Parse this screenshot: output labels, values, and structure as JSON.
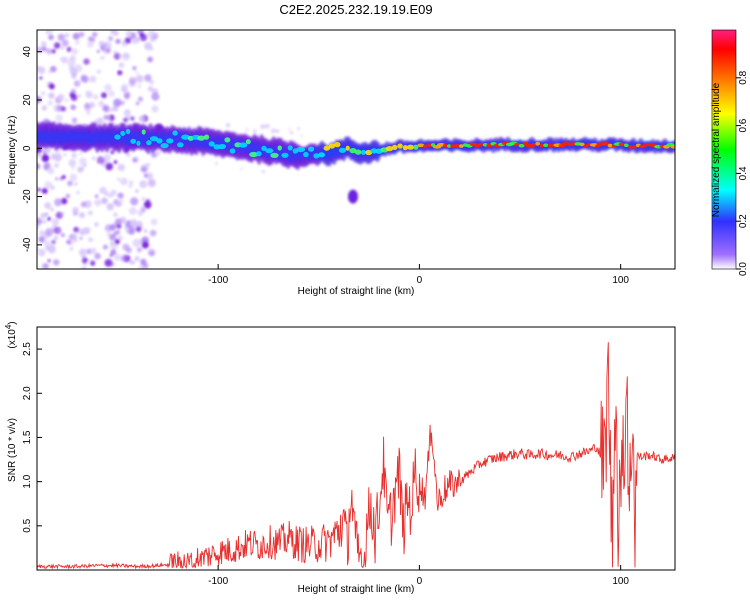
{
  "title": "C2E2.2025.232.19.19.E09",
  "chart_data": [
    {
      "type": "heatmap",
      "name": "spectrogram",
      "xlabel": "Height of straight line (km)",
      "ylabel": "Frequency (Hz)",
      "xlim": [
        -190,
        127
      ],
      "ylim": [
        -50,
        49
      ],
      "xticks": [
        -100,
        0,
        100
      ],
      "xtick_labels": [
        "-100",
        "0",
        "100"
      ],
      "yticks": [
        -40,
        -20,
        0,
        20,
        40
      ],
      "ytick_labels": [
        "-40",
        "-20",
        "0",
        "20",
        "40"
      ],
      "colorbar": {
        "label": "Normalized spectral amplitude",
        "range": [
          0.0,
          1.0
        ],
        "ticks": [
          0.0,
          0.2,
          0.4,
          0.6,
          0.8
        ],
        "tick_labels": [
          "0.0",
          "0.2",
          "0.4",
          "0.6",
          "0.8"
        ],
        "colors": [
          "#ffffff",
          "#8a2be2",
          "#0000ff",
          "#00ffff",
          "#00ff00",
          "#ffff00",
          "#ff8000",
          "#ff0000",
          "#ff0080"
        ]
      },
      "ridge": {
        "x": [
          -190,
          -160,
          -130,
          -110,
          -90,
          -75,
          -60,
          -50,
          -45,
          -40,
          -35,
          -30,
          -25,
          -20,
          -15,
          -10,
          0,
          20,
          40,
          60,
          80,
          95,
          105,
          127
        ],
        "freq_center": [
          5,
          4.5,
          4,
          3,
          1,
          -1,
          -3,
          -2,
          -2.5,
          -1,
          0,
          -2,
          -1.5,
          -1,
          0,
          0.5,
          1,
          1,
          1.5,
          1.5,
          1.5,
          1.5,
          1,
          1
        ]
      },
      "isolated_blob": {
        "x": -33,
        "freq": -20
      },
      "noise_region_x": [
        -190,
        -127
      ]
    },
    {
      "type": "line",
      "name": "snr",
      "xlabel": "Height of straight line (km)",
      "ylabel": "SNR (10 * v/v)",
      "scale_label_main": "(x10",
      "scale_label_exp": "4",
      "scale_label_end": ")",
      "xlim": [
        -190,
        127
      ],
      "ylim": [
        0,
        2.75
      ],
      "xticks": [
        -100,
        0,
        100
      ],
      "xtick_labels": [
        "-100",
        "0",
        "100"
      ],
      "yticks": [
        0.5,
        1.0,
        1.5,
        2.0,
        2.5
      ],
      "ytick_labels": [
        "0.5",
        "1.0",
        "1.5",
        "2.0",
        "2.5"
      ],
      "color": "#e8302e",
      "series": [
        {
          "name": "SNR",
          "x": [
            -190,
            -180,
            -170,
            -160,
            -150,
            -140,
            -130,
            -125,
            -120,
            -115,
            -110,
            -105,
            -100,
            -95,
            -90,
            -85,
            -80,
            -75,
            -70,
            -65,
            -60,
            -55,
            -50,
            -45,
            -40,
            -38,
            -36,
            -34,
            -32,
            -30,
            -28,
            -26,
            -24,
            -22,
            -20,
            -18,
            -16,
            -14,
            -12,
            -10,
            -8,
            -6,
            -4,
            -2,
            0,
            3,
            6,
            9,
            12,
            15,
            20,
            25,
            30,
            35,
            40,
            45,
            50,
            55,
            60,
            65,
            70,
            75,
            80,
            85,
            88,
            90,
            92,
            94,
            95,
            96,
            97,
            98,
            99,
            100,
            101,
            102,
            103,
            104,
            105,
            106,
            107,
            108,
            110,
            115,
            120,
            127
          ],
          "y": [
            0.04,
            0.04,
            0.04,
            0.05,
            0.05,
            0.04,
            0.05,
            0.06,
            0.1,
            0.08,
            0.14,
            0.16,
            0.2,
            0.22,
            0.25,
            0.3,
            0.28,
            0.32,
            0.3,
            0.36,
            0.3,
            0.28,
            0.3,
            0.32,
            0.45,
            0.6,
            0.25,
            0.9,
            0.3,
            0.14,
            0.18,
            0.5,
            0.75,
            0.4,
            0.7,
            1.25,
            0.55,
            0.6,
            0.9,
            1.1,
            0.45,
            0.8,
            0.7,
            1.15,
            0.95,
            0.85,
            1.65,
            0.75,
            0.9,
            0.95,
            1.0,
            1.1,
            1.2,
            1.25,
            1.28,
            1.3,
            1.32,
            1.3,
            1.32,
            1.3,
            1.3,
            1.28,
            1.32,
            1.35,
            1.4,
            1.3,
            1.2,
            2.3,
            0.9,
            0.3,
            2.2,
            1.5,
            0.1,
            1.2,
            1.8,
            0.9,
            2.7,
            0.5,
            1.1,
            2.0,
            0.4,
            1.3,
            1.28,
            1.3,
            1.25,
            1.27
          ]
        }
      ]
    }
  ]
}
